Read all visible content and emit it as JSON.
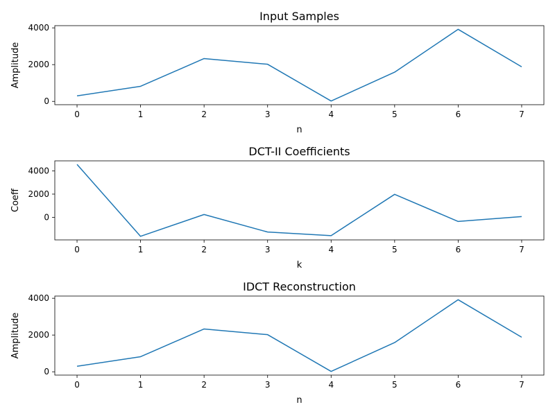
{
  "chart_data": [
    {
      "type": "line",
      "title": "Input Samples",
      "xlabel": "n",
      "ylabel": "Amplitude",
      "x": [
        0,
        1,
        2,
        3,
        4,
        5,
        6,
        7
      ],
      "y": [
        300,
        820,
        2330,
        2020,
        20,
        1590,
        3920,
        1880
      ],
      "xticks": [
        0,
        1,
        2,
        3,
        4,
        5,
        6,
        7
      ],
      "yticks": [
        0,
        2000,
        4000
      ],
      "xlim": [
        -0.35,
        7.35
      ],
      "ylim": [
        -180,
        4120
      ],
      "grid": false,
      "color": "#1f77b4"
    },
    {
      "type": "line",
      "title": "DCT-II Coefficients",
      "xlabel": "k",
      "ylabel": "Coeff",
      "x": [
        0,
        1,
        2,
        3,
        4,
        5,
        6,
        7
      ],
      "y": [
        4560,
        -1640,
        240,
        -1270,
        -1580,
        1980,
        -360,
        60
      ],
      "xticks": [
        0,
        1,
        2,
        3,
        4,
        5,
        6,
        7
      ],
      "yticks": [
        0,
        2000,
        4000
      ],
      "xlim": [
        -0.35,
        7.35
      ],
      "ylim": [
        -1950,
        4870
      ],
      "grid": false,
      "color": "#1f77b4"
    },
    {
      "type": "line",
      "title": "IDCT Reconstruction",
      "xlabel": "n",
      "ylabel": "Amplitude",
      "x": [
        0,
        1,
        2,
        3,
        4,
        5,
        6,
        7
      ],
      "y": [
        300,
        820,
        2330,
        2020,
        20,
        1590,
        3920,
        1880
      ],
      "xticks": [
        0,
        1,
        2,
        3,
        4,
        5,
        6,
        7
      ],
      "yticks": [
        0,
        2000,
        4000
      ],
      "xlim": [
        -0.35,
        7.35
      ],
      "ylim": [
        -180,
        4120
      ],
      "grid": false,
      "color": "#1f77b4"
    }
  ]
}
